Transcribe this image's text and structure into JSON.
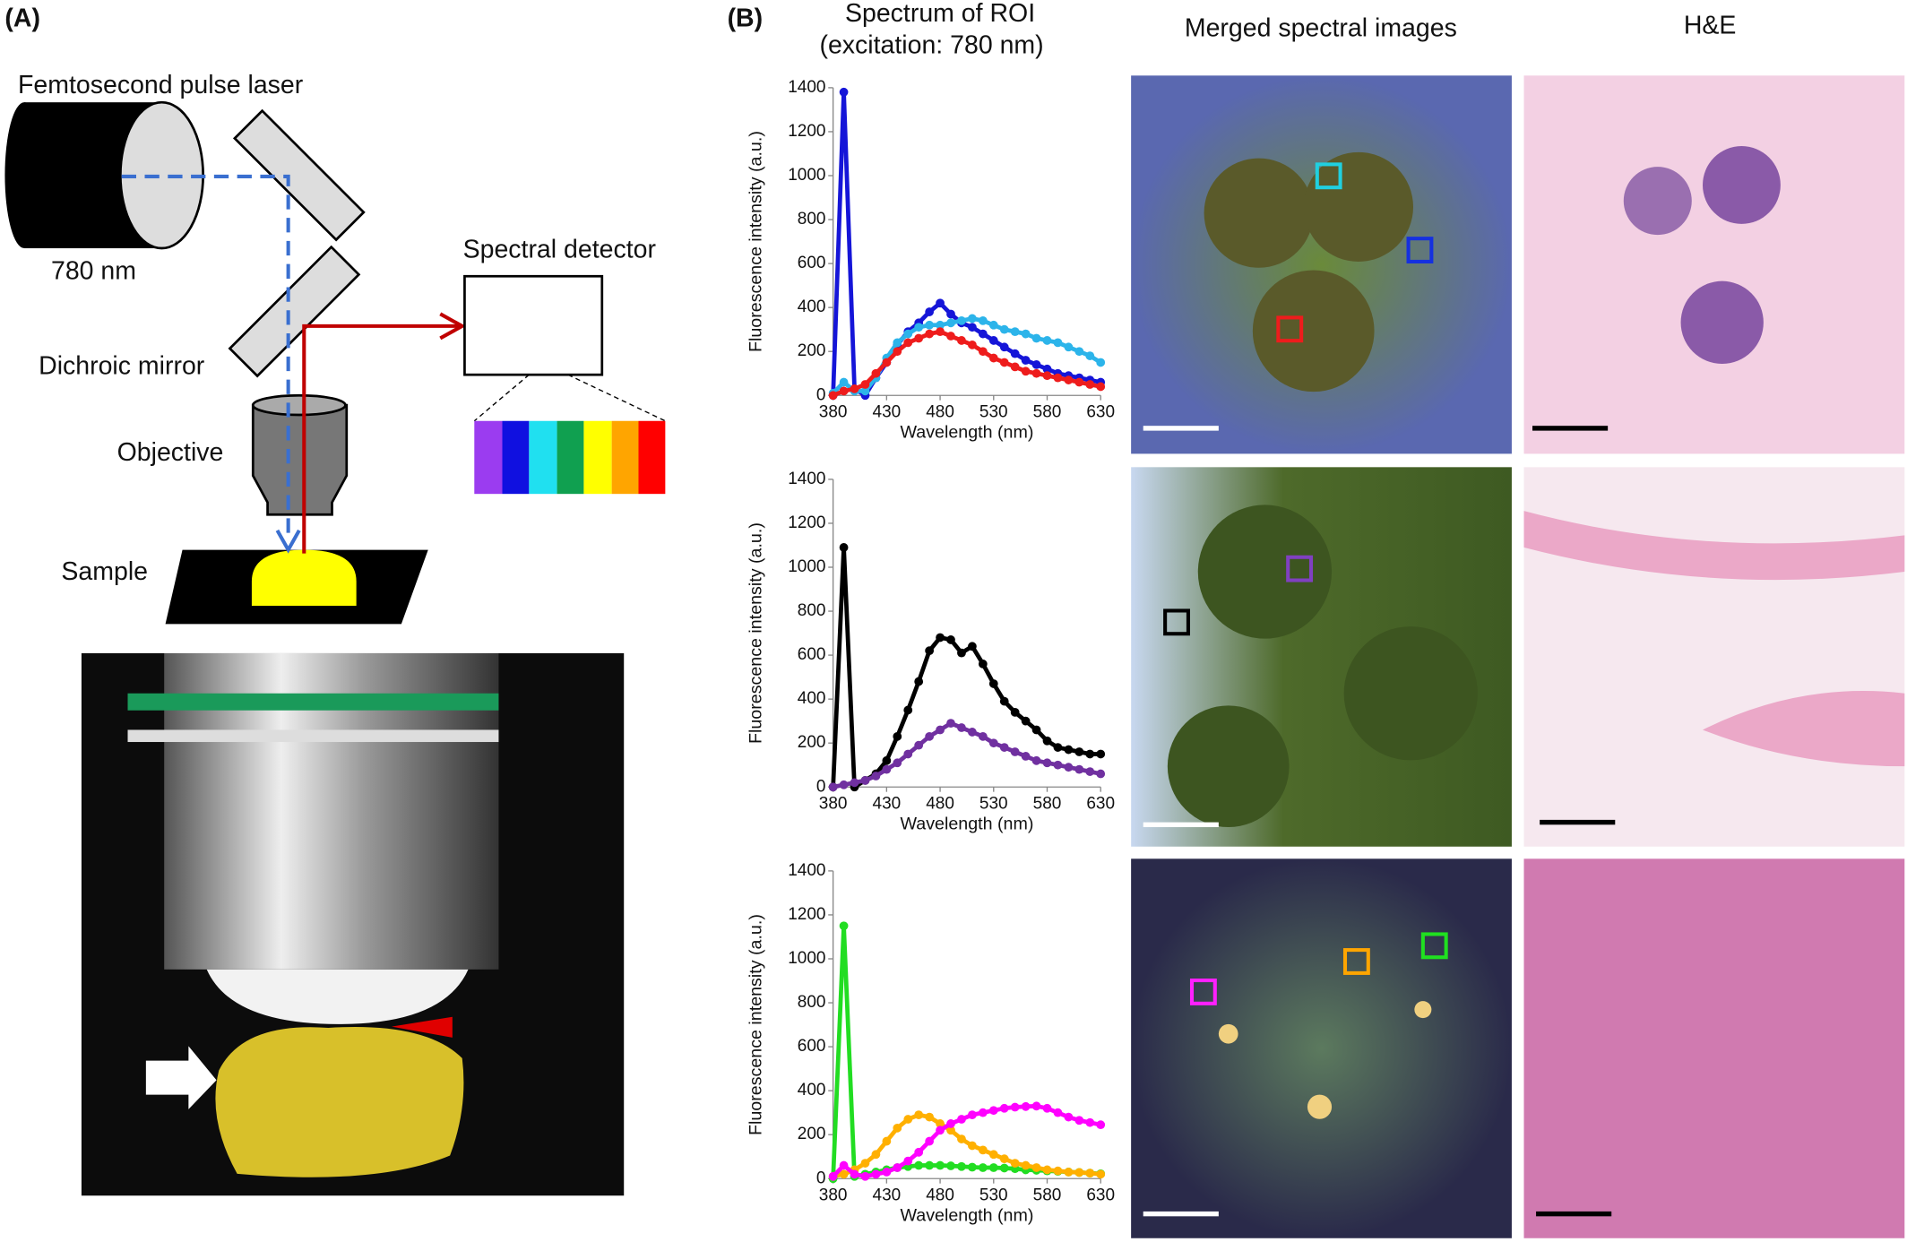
{
  "panel_a": {
    "label": "(A)",
    "laser": "Femtosecond pulse laser",
    "wavelength": "780 nm",
    "detector": "Spectral detector",
    "mirror": "Dichroic mirror",
    "objective": "Objective",
    "sample": "Sample"
  },
  "panel_b": {
    "label": "(B)",
    "column_headers": [
      "Merged spectral images",
      "H&E"
    ]
  },
  "chart_data": [
    {
      "type": "line",
      "title": "Spectrum of ROI",
      "subtitle": "(excitation: 780 nm)",
      "x_label": "Wavelength (nm)",
      "y_label": "Fluorescence intensity (a.u.)",
      "x": [
        380,
        390,
        400,
        410,
        420,
        430,
        440,
        450,
        460,
        470,
        480,
        490,
        500,
        510,
        520,
        530,
        540,
        550,
        560,
        570,
        580,
        590,
        600,
        610,
        620,
        630
      ],
      "xlim": [
        380,
        630
      ],
      "ylim": [
        0,
        1400
      ],
      "xticks": [
        380,
        430,
        480,
        530,
        580,
        630
      ],
      "yticks": [
        0,
        200,
        400,
        600,
        800,
        1000,
        1200,
        1400
      ],
      "series": [
        {
          "color": "#1515d8",
          "values": [
            0,
            1380,
            30,
            0,
            80,
            150,
            230,
            290,
            330,
            380,
            420,
            370,
            330,
            310,
            280,
            250,
            220,
            190,
            160,
            140,
            120,
            100,
            90,
            80,
            70,
            60
          ]
        },
        {
          "color": "#2cb4ea",
          "values": [
            10,
            60,
            20,
            20,
            80,
            170,
            240,
            280,
            310,
            320,
            320,
            330,
            340,
            350,
            340,
            320,
            300,
            290,
            280,
            260,
            250,
            240,
            220,
            200,
            180,
            150
          ]
        },
        {
          "color": "#ee1c1c",
          "values": [
            0,
            20,
            30,
            50,
            100,
            150,
            200,
            240,
            260,
            280,
            290,
            270,
            250,
            230,
            200,
            170,
            150,
            130,
            110,
            100,
            90,
            80,
            70,
            60,
            50,
            40
          ]
        }
      ]
    },
    {
      "type": "line",
      "x_label": "Wavelength (nm)",
      "y_label": "Fluorescence intensity (a.u.)",
      "x": [
        380,
        390,
        400,
        410,
        420,
        430,
        440,
        450,
        460,
        470,
        480,
        490,
        500,
        510,
        520,
        530,
        540,
        550,
        560,
        570,
        580,
        590,
        600,
        610,
        620,
        630
      ],
      "xlim": [
        380,
        630
      ],
      "ylim": [
        0,
        1400
      ],
      "xticks": [
        380,
        430,
        480,
        530,
        580,
        630
      ],
      "yticks": [
        0,
        200,
        400,
        600,
        800,
        1000,
        1200,
        1400
      ],
      "series": [
        {
          "color": "#000000",
          "values": [
            0,
            1090,
            0,
            30,
            60,
            120,
            230,
            350,
            480,
            620,
            680,
            670,
            610,
            640,
            560,
            470,
            390,
            340,
            300,
            260,
            210,
            180,
            170,
            160,
            150,
            150
          ]
        },
        {
          "color": "#7030a0",
          "values": [
            0,
            10,
            20,
            30,
            50,
            80,
            110,
            150,
            190,
            230,
            260,
            290,
            270,
            250,
            230,
            200,
            180,
            160,
            140,
            120,
            110,
            100,
            90,
            80,
            70,
            60
          ]
        }
      ]
    },
    {
      "type": "line",
      "x_label": "Wavelength (nm)",
      "y_label": "Fluorescence intensity (a.u.)",
      "x": [
        380,
        390,
        400,
        410,
        420,
        430,
        440,
        450,
        460,
        470,
        480,
        490,
        500,
        510,
        520,
        530,
        540,
        550,
        560,
        570,
        580,
        590,
        600,
        610,
        620,
        630
      ],
      "xlim": [
        380,
        630
      ],
      "ylim": [
        0,
        1400
      ],
      "xticks": [
        380,
        430,
        480,
        530,
        580,
        630
      ],
      "yticks": [
        0,
        200,
        400,
        600,
        800,
        1000,
        1200,
        1400
      ],
      "series": [
        {
          "color": "#22dd22",
          "values": [
            0,
            1150,
            10,
            20,
            30,
            40,
            50,
            55,
            60,
            60,
            60,
            58,
            55,
            52,
            50,
            50,
            48,
            45,
            40,
            38,
            35,
            33,
            30,
            28,
            25,
            22
          ]
        },
        {
          "color": "#ffb000",
          "values": [
            10,
            20,
            40,
            70,
            110,
            170,
            230,
            270,
            290,
            280,
            250,
            220,
            180,
            150,
            130,
            110,
            90,
            70,
            60,
            50,
            40,
            35,
            30,
            28,
            25,
            20
          ]
        },
        {
          "color": "#ff00ff",
          "values": [
            10,
            60,
            20,
            10,
            20,
            30,
            50,
            80,
            120,
            170,
            220,
            250,
            270,
            290,
            300,
            310,
            320,
            325,
            328,
            330,
            320,
            300,
            280,
            265,
            255,
            245
          ]
        }
      ]
    }
  ]
}
